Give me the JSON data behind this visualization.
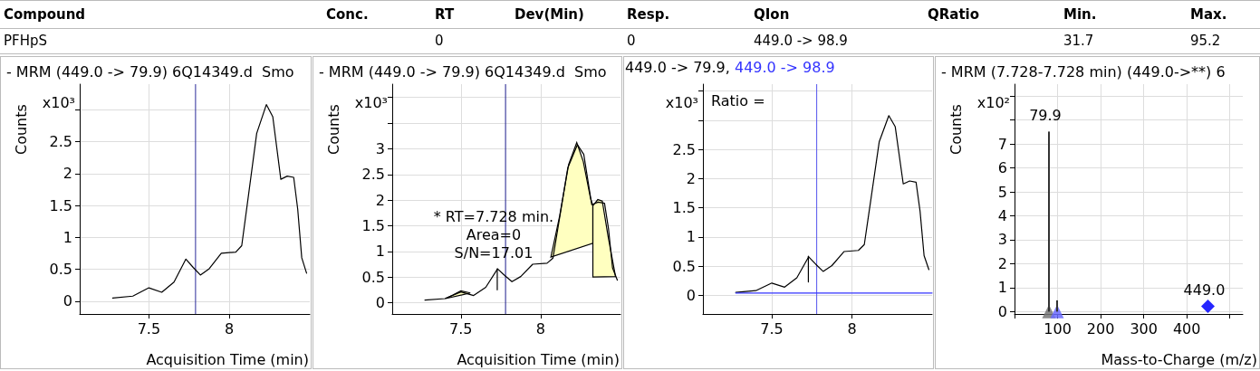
{
  "chart_data": [
    {
      "type": "other",
      "categories": [
        "Compound",
        "Conc.",
        "RT",
        "Dev(Min)",
        "Resp.",
        "QIon",
        "QRatio",
        "Min.",
        "Max."
      ],
      "cell_labels": [
        [
          "PFHpS",
          null,
          "0",
          null,
          "0",
          "449.0 -> 98.9",
          null,
          "31.7",
          "95.2"
        ]
      ]
    },
    {
      "type": "line",
      "title": "- MRM (449.0 -> 79.9) 6Q14349.d  Smo",
      "xlabel": "Acquisition Time (min)",
      "ylabel": "Counts",
      "annotations": [
        "x10³"
      ],
      "x": [
        7.275,
        7.4,
        7.5,
        7.58,
        7.656,
        7.73,
        7.775,
        7.82,
        7.875,
        7.95,
        8.04,
        8.077,
        8.12,
        8.17,
        8.23,
        8.27,
        8.32,
        8.36,
        8.4,
        8.425,
        8.45,
        8.48
      ],
      "series": [
        {
          "color": "#000000",
          "values": [
            0.05,
            0.08,
            0.21,
            0.14,
            0.3,
            0.66,
            0.53,
            0.41,
            0.51,
            0.75,
            0.77,
            0.87,
            1.68,
            2.63,
            3.08,
            2.89,
            1.91,
            1.96,
            1.94,
            1.44,
            0.68,
            0.44
          ]
        }
      ],
      "xlim": [
        7.07,
        8.5
      ],
      "xticks": [
        7.5,
        8
      ],
      "ylim": [
        -0.2,
        3.4
      ],
      "yticks": [
        0,
        0.5,
        1,
        1.5,
        2,
        2.5,
        {
          "value": 3,
          "label": null
        }
      ],
      "grid": true,
      "marker": "none",
      "ref_lines": [
        {
          "axis": "x",
          "value": 7.79,
          "color": "#2b2b9b"
        }
      ]
    },
    {
      "type": "line",
      "title": "- MRM (449.0 -> 79.9) 6Q14349.d  Smo",
      "xlabel": "Acquisition Time (min)",
      "ylabel": "Counts",
      "annotations": [
        "x10³",
        {
          "text": "* RT=7.728 min.\nArea=0\nS/N=17.01",
          "x": 7.728,
          "y": 0.66
        }
      ],
      "x": [
        7.275,
        7.4,
        7.5,
        7.58,
        7.656,
        7.73,
        7.775,
        7.82,
        7.875,
        7.95,
        8.04,
        8.077,
        8.12,
        8.17,
        8.23,
        8.27,
        8.32,
        8.36,
        8.4,
        8.425,
        8.45,
        8.48
      ],
      "series": [
        {
          "type": "area",
          "color": "#ffffc0",
          "x": [
            7.403,
            7.45,
            7.5,
            7.559
          ],
          "values": [
            0.08,
            0.15,
            0.23,
            0.19
          ]
        },
        {
          "type": "area",
          "color": "#ffffc0",
          "x": [
            8.064,
            8.119,
            8.175,
            8.226,
            8.267,
            8.312,
            8.327,
            8.327
          ],
          "values": [
            0.89,
            1.69,
            2.69,
            3.12,
            2.75,
            2.04,
            1.89,
            1.16
          ]
        },
        {
          "type": "area",
          "color": "#ffffc0",
          "x": [
            8.327,
            8.327,
            8.358,
            8.386,
            8.423,
            8.469
          ],
          "values": [
            0.5,
            1.89,
            2.01,
            1.98,
            1.28,
            0.51
          ]
        },
        {
          "color": "#000000",
          "values": [
            0.05,
            0.08,
            0.21,
            0.14,
            0.3,
            0.66,
            0.53,
            0.41,
            0.51,
            0.75,
            0.77,
            0.87,
            1.68,
            2.63,
            3.08,
            2.89,
            1.91,
            1.96,
            1.94,
            1.44,
            0.68,
            0.44
          ]
        },
        {
          "color": "#000000",
          "x": [
            7.728,
            7.728
          ],
          "values": [
            0.25,
            0.66
          ]
        }
      ],
      "xlim": [
        7.07,
        8.5
      ],
      "xticks": [
        7.5,
        8
      ],
      "ylim": [
        -0.22,
        4.26
      ],
      "yticks": [
        0,
        0.5,
        1,
        1.5,
        2,
        2.5,
        3,
        {
          "value": 3.5,
          "label": null
        },
        {
          "value": 4,
          "label": null
        }
      ],
      "grid": true,
      "marker": "none",
      "ref_lines": [
        {
          "axis": "x",
          "value": 7.78,
          "color": "#1c1c8c"
        }
      ]
    },
    {
      "type": "line",
      "annotations": [
        "x10³",
        "Ratio ="
      ],
      "legend": "top left",
      "x": [
        7.275,
        7.4,
        7.5,
        7.58,
        7.656,
        7.73,
        7.775,
        7.82,
        7.875,
        7.95,
        8.04,
        8.077,
        8.12,
        8.17,
        8.23,
        8.27,
        8.32,
        8.36,
        8.4,
        8.425,
        8.45,
        8.48
      ],
      "series": [
        {
          "name": "449.0 -> 79.9,",
          "color": "#000000",
          "values": [
            0.05,
            0.08,
            0.21,
            0.14,
            0.3,
            0.66,
            0.53,
            0.41,
            0.51,
            0.75,
            0.77,
            0.87,
            1.68,
            2.63,
            3.08,
            2.89,
            1.91,
            1.96,
            1.94,
            1.44,
            0.68,
            0.44
          ]
        },
        {
          "name": "449.0 -> 98.9",
          "color": "#3333ff",
          "x": [
            7.275,
            8.5
          ],
          "values": [
            0.04,
            0.04
          ]
        },
        {
          "color": "#000000",
          "x": [
            7.728,
            7.728
          ],
          "values": [
            0.23,
            0.67
          ]
        }
      ],
      "xlim": [
        7.07,
        8.5
      ],
      "xticks": [
        7.5,
        8
      ],
      "ylim": [
        -0.32,
        3.62
      ],
      "yticks": [
        0,
        0.5,
        1,
        1.5,
        2,
        2.5,
        {
          "value": 3,
          "label": null
        },
        {
          "value": 3.5,
          "label": null
        }
      ],
      "grid": true,
      "marker": "none",
      "ref_lines": [
        {
          "axis": "x",
          "value": 7.78,
          "color": "#5555ee"
        }
      ]
    },
    {
      "type": "bar",
      "title": "- MRM (7.728-7.728 min) (449.0->**) 6",
      "xlabel": "Mass-to-Charge (m/z)",
      "ylabel": "Counts",
      "annotations": [
        "x10²",
        {
          "text": "79.9",
          "x": 79.9,
          "y": 7.52
        },
        {
          "text": "449.0",
          "x": 449.0,
          "y": 0.22
        }
      ],
      "series": [
        {
          "color": "#333333",
          "x": [
            79.9,
            98.9
          ],
          "values": [
            7.52,
            0.47
          ]
        },
        {
          "type": "scatter",
          "marker": "triangle",
          "color": "#777777",
          "x": [
            79.9
          ],
          "values": [
            0
          ]
        },
        {
          "type": "scatter",
          "marker": "triangle",
          "color": "#6a6aff",
          "x": [
            98.9
          ],
          "values": [
            0
          ]
        },
        {
          "type": "scatter",
          "marker": "diamond",
          "color": "#0000ff",
          "x": [
            449.0
          ],
          "values": [
            0.22
          ]
        }
      ],
      "xlim": [
        0,
        530
      ],
      "xticks": [
        {
          "value": 0,
          "label": null
        },
        100,
        200,
        300,
        400,
        {
          "value": 500,
          "label": null
        }
      ],
      "ylim": [
        -0.1,
        9.5
      ],
      "yticks": [
        0,
        1,
        2,
        3,
        4,
        5,
        6,
        7,
        {
          "value": 8,
          "label": null
        },
        {
          "value": 9,
          "label": null
        }
      ],
      "grid": true
    }
  ]
}
